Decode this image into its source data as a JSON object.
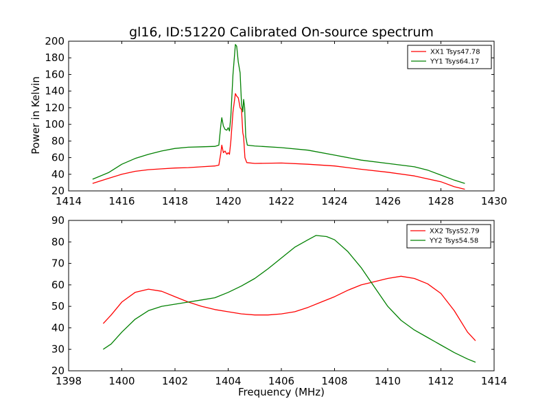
{
  "title": "gl16, ID:51220 Calibrated On-source spectrum",
  "ylabel": "Power in Kelvin",
  "xlabel": "Frequency (MHz)",
  "colors": {
    "xx": "#ff0000",
    "yy": "#008000"
  },
  "chart_data": [
    {
      "type": "line",
      "title": "gl16, ID:51220 Calibrated On-source spectrum",
      "ylabel": "Power in Kelvin",
      "xlim": [
        1414,
        1430
      ],
      "ylim": [
        20,
        200
      ],
      "xticks": [
        1414,
        1416,
        1418,
        1420,
        1422,
        1424,
        1426,
        1428,
        1430
      ],
      "yticks": [
        20,
        40,
        60,
        80,
        100,
        120,
        140,
        160,
        180,
        200
      ],
      "legend": "top-right",
      "series": [
        {
          "name": "XX1 Tsys47.78",
          "color": "#ff0000",
          "points": [
            [
              1414.9,
              29
            ],
            [
              1415.5,
              35
            ],
            [
              1416,
              40
            ],
            [
              1416.5,
              43.5
            ],
            [
              1417,
              45.5
            ],
            [
              1417.5,
              46.5
            ],
            [
              1418,
              47.5
            ],
            [
              1418.5,
              48
            ],
            [
              1419,
              49
            ],
            [
              1419.5,
              50
            ],
            [
              1419.65,
              51
            ],
            [
              1419.72,
              65
            ],
            [
              1419.76,
              75
            ],
            [
              1419.82,
              66
            ],
            [
              1419.88,
              68
            ],
            [
              1419.95,
              64
            ],
            [
              1420,
              66
            ],
            [
              1420.05,
              64
            ],
            [
              1420.1,
              80
            ],
            [
              1420.18,
              115
            ],
            [
              1420.27,
              137
            ],
            [
              1420.32,
              134
            ],
            [
              1420.38,
              132
            ],
            [
              1420.45,
              120
            ],
            [
              1420.5,
              118
            ],
            [
              1420.55,
              90
            ],
            [
              1420.58,
              85
            ],
            [
              1420.63,
              60
            ],
            [
              1420.7,
              54
            ],
            [
              1421,
              53
            ],
            [
              1422,
              53.5
            ],
            [
              1423,
              52
            ],
            [
              1424,
              50
            ],
            [
              1425,
              46
            ],
            [
              1426,
              42.5
            ],
            [
              1427,
              38
            ],
            [
              1428,
              31
            ],
            [
              1428.5,
              25
            ],
            [
              1428.9,
              22
            ]
          ]
        },
        {
          "name": "YY1 Tsys64.17",
          "color": "#008000",
          "points": [
            [
              1414.9,
              34
            ],
            [
              1415.5,
              42
            ],
            [
              1416,
              52
            ],
            [
              1416.5,
              59
            ],
            [
              1417,
              64
            ],
            [
              1417.5,
              68
            ],
            [
              1418,
              71
            ],
            [
              1418.5,
              72.5
            ],
            [
              1419,
              73
            ],
            [
              1419.5,
              73.5
            ],
            [
              1419.65,
              75
            ],
            [
              1419.72,
              98
            ],
            [
              1419.76,
              108
            ],
            [
              1419.82,
              98
            ],
            [
              1419.88,
              94
            ],
            [
              1419.95,
              93
            ],
            [
              1420,
              96
            ],
            [
              1420.05,
              92
            ],
            [
              1420.1,
              110
            ],
            [
              1420.18,
              160
            ],
            [
              1420.27,
              196
            ],
            [
              1420.32,
              194
            ],
            [
              1420.38,
              175
            ],
            [
              1420.45,
              162
            ],
            [
              1420.5,
              125
            ],
            [
              1420.55,
              115
            ],
            [
              1420.58,
              130
            ],
            [
              1420.62,
              120
            ],
            [
              1420.66,
              85
            ],
            [
              1420.72,
              75
            ],
            [
              1421,
              74
            ],
            [
              1422,
              72
            ],
            [
              1423,
              69
            ],
            [
              1424,
              63
            ],
            [
              1425,
              57
            ],
            [
              1426,
              53
            ],
            [
              1427,
              49
            ],
            [
              1427.5,
              45
            ],
            [
              1428,
              39
            ],
            [
              1428.5,
              33
            ],
            [
              1428.9,
              29
            ]
          ]
        }
      ]
    },
    {
      "type": "line",
      "xlabel": "Frequency (MHz)",
      "xlim": [
        1398,
        1414
      ],
      "ylim": [
        20,
        90
      ],
      "xticks": [
        1398,
        1400,
        1402,
        1404,
        1406,
        1408,
        1410,
        1412,
        1414
      ],
      "yticks": [
        20,
        30,
        40,
        50,
        60,
        70,
        80,
        90
      ],
      "legend": "top-right",
      "series": [
        {
          "name": "XX2 Tsys52.79",
          "color": "#ff0000",
          "points": [
            [
              1399.3,
              42
            ],
            [
              1399.6,
              46
            ],
            [
              1400,
              52
            ],
            [
              1400.5,
              56.5
            ],
            [
              1401,
              58
            ],
            [
              1401.5,
              57
            ],
            [
              1402,
              54.5
            ],
            [
              1402.5,
              52
            ],
            [
              1403,
              50
            ],
            [
              1403.5,
              48.5
            ],
            [
              1404,
              47.5
            ],
            [
              1404.5,
              46.5
            ],
            [
              1405,
              46
            ],
            [
              1405.5,
              46
            ],
            [
              1406,
              46.5
            ],
            [
              1406.5,
              47.5
            ],
            [
              1407,
              49.5
            ],
            [
              1407.5,
              52
            ],
            [
              1408,
              54.5
            ],
            [
              1408.5,
              57.5
            ],
            [
              1409,
              60
            ],
            [
              1409.5,
              61.5
            ],
            [
              1410,
              63
            ],
            [
              1410.5,
              64
            ],
            [
              1411,
              63
            ],
            [
              1411.5,
              60.5
            ],
            [
              1412,
              56
            ],
            [
              1412.5,
              48
            ],
            [
              1413,
              38
            ],
            [
              1413.3,
              34
            ]
          ]
        },
        {
          "name": "YY2 Tsys54.58",
          "color": "#008000",
          "points": [
            [
              1399.3,
              30
            ],
            [
              1399.6,
              32.5
            ],
            [
              1400,
              38
            ],
            [
              1400.5,
              44
            ],
            [
              1401,
              48
            ],
            [
              1401.5,
              50
            ],
            [
              1402,
              51
            ],
            [
              1402.5,
              52
            ],
            [
              1403,
              53
            ],
            [
              1403.5,
              54
            ],
            [
              1404,
              56.5
            ],
            [
              1404.5,
              59.5
            ],
            [
              1405,
              63
            ],
            [
              1405.5,
              67.5
            ],
            [
              1406,
              72.5
            ],
            [
              1406.5,
              77.5
            ],
            [
              1407,
              81
            ],
            [
              1407.3,
              83
            ],
            [
              1407.7,
              82.5
            ],
            [
              1408,
              81
            ],
            [
              1408.5,
              75.5
            ],
            [
              1409,
              68
            ],
            [
              1409.5,
              59
            ],
            [
              1410,
              50
            ],
            [
              1410.5,
              43.5
            ],
            [
              1411,
              39
            ],
            [
              1411.5,
              35.5
            ],
            [
              1412,
              32
            ],
            [
              1412.5,
              28.5
            ],
            [
              1413,
              25.5
            ],
            [
              1413.3,
              24
            ]
          ]
        }
      ]
    }
  ]
}
